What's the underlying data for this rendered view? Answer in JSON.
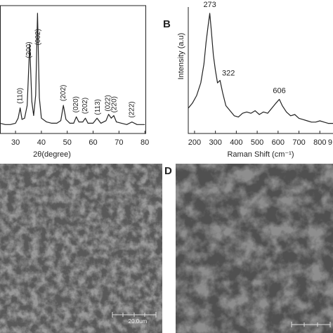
{
  "figure": {
    "panel_labels": [
      "B",
      "D"
    ],
    "scale_bar_label": "20.0um"
  },
  "chart_data": [
    {
      "type": "line",
      "xlabel": "2θ(degree)",
      "x": [
        24,
        26,
        28,
        30,
        31,
        31.8,
        32.5,
        33.5,
        34.5,
        35.5,
        36.3,
        37,
        37.8,
        38.5,
        39.2,
        40,
        42,
        44,
        46,
        47.5,
        48.5,
        49.5,
        51,
        52.5,
        53.5,
        54.5,
        56,
        57,
        58,
        60,
        61.5,
        63,
        65,
        66,
        67,
        68,
        69,
        71,
        73,
        75,
        77,
        80
      ],
      "values": [
        8,
        7,
        7,
        8,
        12,
        20,
        11,
        12,
        22,
        70,
        25,
        14,
        30,
        94,
        28,
        12,
        9,
        8,
        8,
        10,
        22,
        11,
        8,
        8,
        13,
        9,
        9,
        12,
        8,
        8,
        12,
        8,
        10,
        15,
        12,
        14,
        9,
        8,
        7,
        9,
        7,
        7
      ],
      "color": "#222222",
      "xlim": [
        24,
        80.5
      ],
      "ylim": [
        0,
        100
      ],
      "xticks": [
        30,
        40,
        50,
        60,
        70,
        80
      ],
      "annotations": [
        {
          "text": "(110)",
          "x": 31.8
        },
        {
          "text": "(200)",
          "x": 35.2
        },
        {
          "text": "(002)",
          "x": 38.8
        },
        {
          "text": "(202)",
          "x": 48.5
        },
        {
          "text": "(020)",
          "x": 53.5
        },
        {
          "text": "(202)",
          "x": 57
        },
        {
          "text": "(113)",
          "x": 61.8
        },
        {
          "text": "(022)",
          "x": 65.8
        },
        {
          "text": "(220)",
          "x": 68.2
        },
        {
          "text": "(222)",
          "x": 75
        }
      ]
    },
    {
      "type": "line",
      "xlabel": "Raman Shift (cm⁻¹)",
      "ylabel": "Intensity (a.u)",
      "x": [
        170,
        190,
        210,
        230,
        245,
        255,
        265,
        273,
        280,
        290,
        300,
        310,
        322,
        335,
        350,
        370,
        390,
        410,
        430,
        450,
        470,
        490,
        510,
        530,
        550,
        570,
        590,
        606,
        620,
        640,
        660,
        680,
        700,
        720,
        740,
        760,
        780,
        800,
        820,
        840,
        863
      ],
      "values": [
        20,
        24,
        30,
        40,
        55,
        72,
        85,
        95,
        82,
        62,
        50,
        40,
        42,
        32,
        22,
        18,
        14,
        13,
        16,
        17,
        16,
        18,
        15,
        17,
        16,
        20,
        24,
        27,
        22,
        17,
        14,
        15,
        12,
        11,
        10,
        9,
        9,
        10,
        9,
        8,
        8
      ],
      "color": "#222222",
      "xlim": [
        170,
        863
      ],
      "ylim": [
        0,
        100
      ],
      "xticks": [
        200,
        300,
        400,
        500,
        600,
        700,
        800,
        {
          "value": 900,
          "label": "9"
        }
      ],
      "peak_labels": [
        273,
        322,
        606
      ]
    }
  ]
}
